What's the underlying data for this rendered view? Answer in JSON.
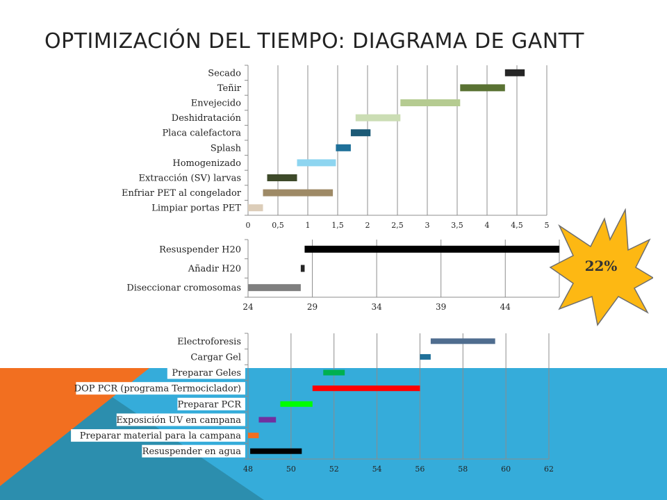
{
  "slide": {
    "title": "OPTIMIZACIÓN DEL TIEMPO: DIAGRAMA DE GANTT",
    "badge": {
      "label": "22%",
      "fill": "#FDB813",
      "stroke": "#6E6E6E",
      "icon": "starburst-icon"
    },
    "background": {
      "blue": "#35ACDA",
      "teal": "#2C8EAE",
      "orange": "#F26F20"
    }
  },
  "chart_data": [
    {
      "type": "gantt",
      "xlim": [
        0,
        5
      ],
      "xticks": [
        "0",
        "0,5",
        "1",
        "1,5",
        "2",
        "2,5",
        "3",
        "3,5",
        "4",
        "4,5",
        "5"
      ],
      "grid": true,
      "tasks": [
        {
          "label": "Secado",
          "start": 4.3,
          "end": 4.63,
          "color": "#262626"
        },
        {
          "label": "Teñir",
          "start": 3.55,
          "end": 4.3,
          "color": "#5A7233"
        },
        {
          "label": "Envejecido",
          "start": 2.55,
          "end": 3.55,
          "color": "#B5CB91"
        },
        {
          "label": "Deshidratación",
          "start": 1.8,
          "end": 2.55,
          "color": "#CBDDB4"
        },
        {
          "label": "Placa calefactora",
          "start": 1.72,
          "end": 2.05,
          "color": "#1C5A76"
        },
        {
          "label": "Splash",
          "start": 1.47,
          "end": 1.72,
          "color": "#1F7099"
        },
        {
          "label": "Homogenizado",
          "start": 0.82,
          "end": 1.47,
          "color": "#8ED5F0"
        },
        {
          "label": "Extracción (SV) larvas",
          "start": 0.32,
          "end": 0.82,
          "color": "#3E4A2A"
        },
        {
          "label": "Enfriar PET al congelador",
          "start": 0.25,
          "end": 1.42,
          "color": "#9E8A66"
        },
        {
          "label": "Limpiar portas PET",
          "start": 0.0,
          "end": 0.25,
          "color": "#DCCDB9"
        }
      ]
    },
    {
      "type": "gantt",
      "xlim": [
        24,
        48.2
      ],
      "xticks": [
        "24",
        "29",
        "34",
        "39",
        "44"
      ],
      "xtick_values": [
        24,
        29,
        34,
        39,
        44
      ],
      "grid": true,
      "tasks": [
        {
          "label": "Resuspender H20",
          "start": 28.4,
          "end": 48.2,
          "color": "#000000"
        },
        {
          "label": "Añadir H20",
          "start": 28.1,
          "end": 28.4,
          "color": "#262626"
        },
        {
          "label": "Diseccionar cromosomas",
          "start": 24.0,
          "end": 28.1,
          "color": "#7F7F7F"
        }
      ]
    },
    {
      "type": "gantt",
      "xlim": [
        48,
        62
      ],
      "xticks": [
        "48",
        "50",
        "52",
        "54",
        "56",
        "58",
        "60",
        "62"
      ],
      "xtick_values": [
        48,
        50,
        52,
        54,
        56,
        58,
        60,
        62
      ],
      "grid": true,
      "tasks": [
        {
          "label": "Electroforesis",
          "start": 56.5,
          "end": 59.5,
          "color": "#4F6D8F"
        },
        {
          "label": "Cargar Gel",
          "start": 56.0,
          "end": 56.5,
          "color": "#1F7099"
        },
        {
          "label": "Preparar Geles",
          "start": 51.5,
          "end": 52.5,
          "color": "#00B050"
        },
        {
          "label": "DOP PCR (programa Termociclador)",
          "start": 51.0,
          "end": 56.0,
          "color": "#FF0000"
        },
        {
          "label": "Preparar PCR",
          "start": 49.5,
          "end": 51.0,
          "color": "#00FF00"
        },
        {
          "label": "Exposición UV en campana",
          "start": 48.5,
          "end": 49.3,
          "color": "#7030A0"
        },
        {
          "label": "Preparar material para la campana",
          "start": 48.0,
          "end": 48.5,
          "color": "#F26F20"
        },
        {
          "label": "Resuspender en agua",
          "start": 48.1,
          "end": 50.5,
          "color": "#000000"
        }
      ]
    }
  ]
}
